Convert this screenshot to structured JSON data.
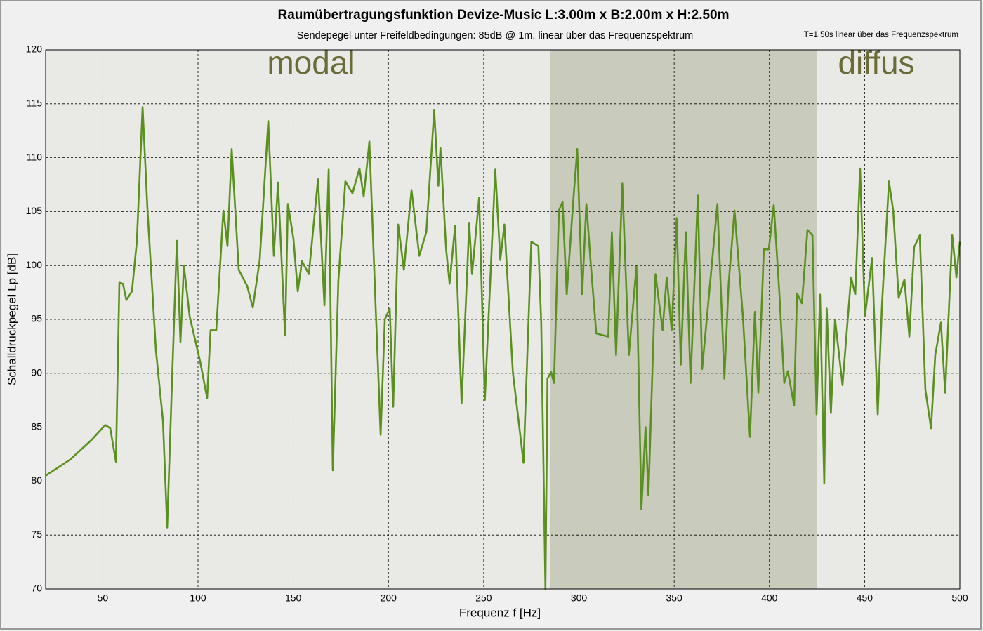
{
  "chart_data": {
    "type": "line",
    "title": "Raumübertragungsfunktion Devize-Music L:3.00m x B:2.00m x H:2.50m",
    "subtitle": "Sendepegel unter Freifeldbedingungen: 85dB @ 1m, linear über das Frequenzspektrum",
    "note": "T=1.50s linear über das Frequenzspektrum",
    "x_label": "Frequenz f [Hz]",
    "y_label": "Schalldruckpegel Lp [dB]",
    "annotations": [
      "modal",
      "diffus"
    ],
    "highlight_xrange": [
      285,
      425
    ],
    "highlight_color": "#c9ccbd",
    "xlim": [
      20,
      500
    ],
    "xticks": [
      50,
      100,
      150,
      200,
      250,
      300,
      350,
      400,
      450,
      500
    ],
    "ylim": [
      70,
      120
    ],
    "yticks": [
      70,
      75,
      80,
      85,
      90,
      95,
      100,
      105,
      110,
      115,
      120
    ],
    "grid": true,
    "series": [
      {
        "color": "#5b9020",
        "x": [
          20,
          32.9,
          44,
          51.3,
          53.9,
          56.9,
          58.7,
          60.6,
          62.4,
          65.3,
          67.9,
          70.9,
          73.5,
          77.9,
          81.6,
          83.8,
          86.4,
          88.9,
          90.8,
          92.6,
          95.6,
          101.1,
          104.8,
          106.6,
          109.6,
          113.3,
          115.5,
          117.7,
          121.4,
          125.8,
          128.8,
          132.4,
          136.9,
          139.8,
          142.0,
          145.7,
          147.2,
          150.1,
          152.4,
          154.6,
          158.2,
          163.0,
          166.4,
          168.6,
          170.8,
          173.7,
          177.4,
          181.1,
          184.8,
          187.0,
          190.0,
          193.3,
          195.9,
          198.1,
          200.7,
          202.5,
          205.1,
          208.1,
          212.1,
          216.2,
          219.9,
          224.0,
          226.2,
          227.3,
          230.3,
          232.1,
          235.0,
          238.4,
          242.4,
          243.9,
          247.6,
          250.6,
          256.1,
          258.7,
          260.9,
          265.3,
          270.9,
          275.0,
          278.7,
          280.2,
          282.4,
          283.5,
          285.4,
          286.9,
          289.5,
          291.4,
          293.6,
          296.9,
          299.1,
          301.7,
          303.9,
          306.2,
          309.1,
          315.4,
          317.3,
          319.5,
          322.8,
          326.2,
          330.2,
          332.8,
          335.0,
          336.5,
          340.2,
          343.9,
          346.1,
          348.7,
          351.3,
          353.5,
          356.1,
          358.6,
          362.4,
          364.7,
          368.3,
          372.7,
          376.4,
          378.6,
          381.7,
          386.1,
          389.8,
          392.4,
          394.2,
          397.1,
          399.7,
          402.3,
          405.3,
          407.8,
          409.7,
          413.0,
          414.5,
          417.1,
          420.0,
          422.6,
          424.8,
          426.6,
          428.8,
          430.1,
          432.3,
          434.5,
          438.4,
          442.9,
          445.1,
          447.6,
          450.2,
          453.9,
          456.9,
          459.1,
          462.8,
          465.0,
          467.9,
          470.9,
          473.5,
          476.0,
          479.0,
          481.9,
          484.9,
          487.1,
          490.1,
          492.3,
          496.0,
          498.2,
          500
        ],
        "values": [
          80.5,
          82.0,
          83.8,
          85.2,
          84.9,
          81.8,
          98.4,
          98.3,
          96.8,
          97.6,
          102.2,
          114.7,
          105.1,
          92.1,
          85.6,
          75.7,
          89.5,
          102.3,
          92.9,
          100.0,
          95.3,
          91.1,
          87.7,
          94.0,
          94.0,
          105.1,
          101.8,
          110.8,
          99.6,
          98.1,
          96.1,
          100.5,
          113.4,
          100.9,
          107.7,
          93.5,
          105.7,
          102.5,
          97.6,
          100.4,
          99.2,
          108.0,
          96.3,
          108.9,
          81.0,
          98.6,
          107.8,
          106.7,
          109.0,
          106.4,
          111.5,
          96.0,
          84.3,
          95.0,
          96.0,
          86.9,
          103.8,
          99.6,
          107.0,
          100.9,
          103.1,
          114.4,
          107.4,
          110.9,
          101.5,
          98.3,
          103.7,
          87.2,
          103.9,
          99.2,
          106.3,
          87.5,
          108.9,
          100.5,
          103.8,
          90.1,
          81.7,
          102.2,
          101.8,
          94.7,
          70.0,
          89.5,
          90.1,
          89.1,
          105.1,
          105.9,
          97.3,
          105.7,
          110.8,
          97.3,
          105.7,
          100.2,
          93.7,
          93.4,
          103.1,
          91.7,
          107.6,
          91.7,
          99.9,
          77.4,
          85.0,
          78.7,
          99.2,
          94.0,
          98.9,
          94.0,
          104.4,
          90.8,
          103.1,
          89.1,
          106.5,
          90.4,
          97.3,
          105.7,
          89.5,
          98.3,
          105.1,
          95.3,
          84.1,
          95.7,
          88.2,
          101.5,
          101.5,
          105.6,
          97.3,
          89.1,
          90.2,
          87.0,
          97.4,
          96.5,
          103.3,
          102.8,
          86.2,
          97.3,
          79.8,
          96.0,
          86.3,
          95.0,
          88.9,
          98.9,
          97.3,
          109.0,
          95.3,
          100.7,
          86.2,
          96.3,
          107.8,
          105.1,
          97.0,
          98.7,
          93.4,
          101.7,
          102.8,
          88.5,
          84.9,
          91.7,
          94.7,
          88.2,
          102.8,
          98.9,
          102.2
        ]
      }
    ]
  }
}
